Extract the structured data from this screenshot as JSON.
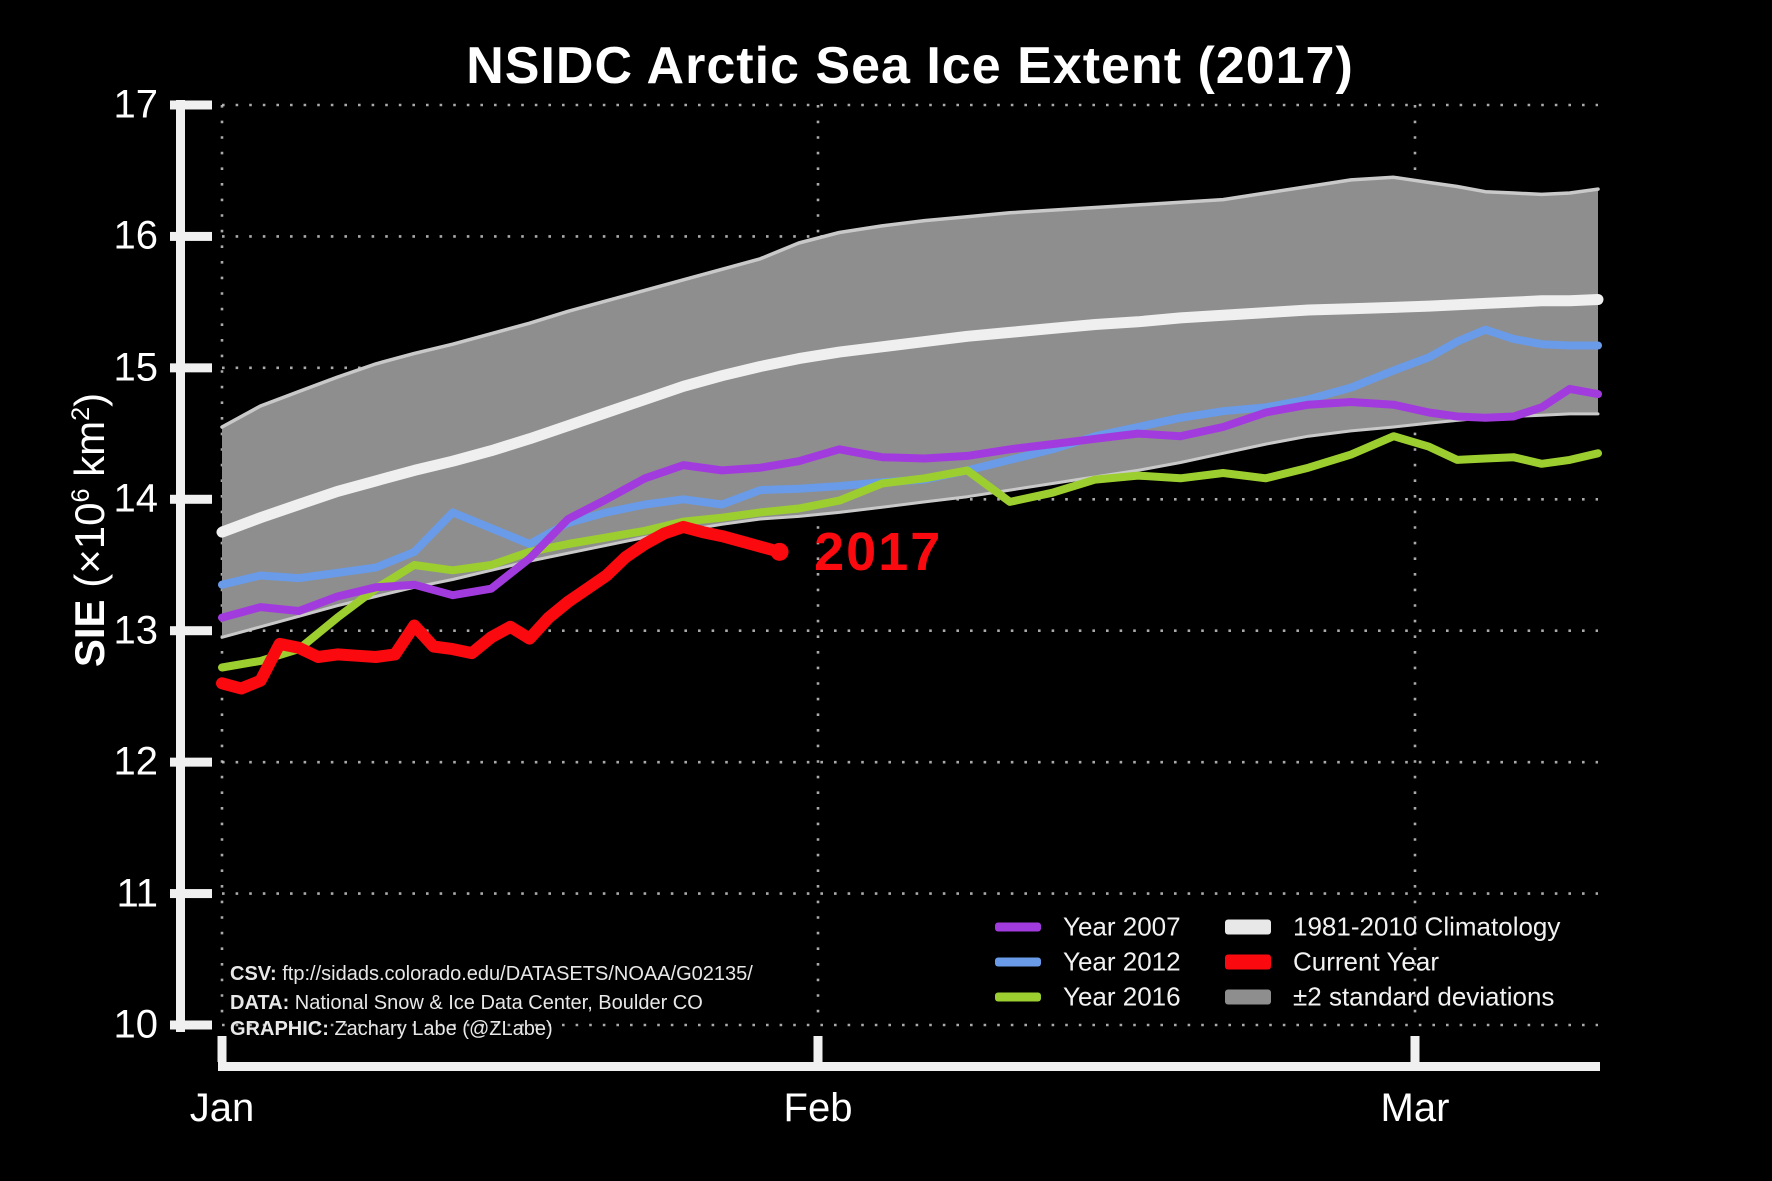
{
  "chart_data": {
    "type": "line",
    "title": "NSIDC Arctic Sea Ice Extent (2017)",
    "ylabel_parts": {
      "bold": "SIE",
      "pre": " (×10",
      "exp1": "6",
      "mid": " km",
      "exp2": "2",
      "close": ")"
    },
    "xlabel": "",
    "ylim": [
      10,
      17
    ],
    "yticks": [
      17,
      16,
      15,
      14,
      13,
      12,
      11,
      10
    ],
    "xticks": [
      "Jan",
      "Feb",
      "Mar"
    ],
    "grid": "dotted, at every y tick and every month tick",
    "legend_position": "lower right, two columns",
    "x_unit": "day of year (Jan 1 = 1)",
    "days": [
      1,
      3,
      5,
      7,
      9,
      11,
      13,
      15,
      17,
      19,
      21,
      23,
      25,
      27,
      29,
      31,
      33,
      35,
      37,
      39,
      41,
      43,
      45,
      47,
      49,
      51,
      53,
      55,
      57,
      59,
      61,
      63,
      65,
      67,
      69,
      71,
      73
    ],
    "band": {
      "name": "±2 standard deviations",
      "upper": [
        14.55,
        14.71,
        14.82,
        14.93,
        15.03,
        15.11,
        15.18,
        15.26,
        15.34,
        15.43,
        15.51,
        15.59,
        15.67,
        15.75,
        15.83,
        15.95,
        16.03,
        16.08,
        16.12,
        16.15,
        16.18,
        16.2,
        16.22,
        16.24,
        16.26,
        16.28,
        16.33,
        16.38,
        16.43,
        16.45,
        16.41,
        16.38,
        16.34,
        16.33,
        16.32,
        16.33,
        16.36
      ],
      "lower": [
        12.95,
        13.03,
        13.11,
        13.19,
        13.26,
        13.33,
        13.39,
        13.46,
        13.53,
        13.59,
        13.65,
        13.71,
        13.76,
        13.81,
        13.85,
        13.87,
        13.9,
        13.94,
        13.98,
        14.02,
        14.07,
        14.12,
        14.17,
        14.22,
        14.28,
        14.35,
        14.42,
        14.48,
        14.52,
        14.55,
        14.58,
        14.6,
        14.62,
        14.63,
        14.64,
        14.65,
        14.65
      ]
    },
    "series": [
      {
        "name": "1981-2010 Climatology",
        "color": "#efefef",
        "values": [
          13.75,
          13.86,
          13.96,
          14.06,
          14.14,
          14.22,
          14.29,
          14.37,
          14.46,
          14.56,
          14.66,
          14.76,
          14.86,
          14.94,
          15.01,
          15.07,
          15.12,
          15.16,
          15.2,
          15.24,
          15.27,
          15.3,
          15.33,
          15.35,
          15.38,
          15.4,
          15.42,
          15.44,
          15.45,
          15.46,
          15.47,
          15.48,
          15.49,
          15.5,
          15.51,
          15.51,
          15.52
        ]
      },
      {
        "name": "Year 2012",
        "color": "#699be8",
        "values": [
          13.35,
          13.42,
          13.4,
          13.44,
          13.48,
          13.6,
          13.9,
          13.78,
          13.66,
          13.82,
          13.9,
          13.96,
          14.0,
          13.96,
          14.07,
          14.08,
          14.1,
          14.13,
          14.15,
          14.22,
          14.3,
          14.38,
          14.48,
          14.55,
          14.62,
          14.67,
          14.7,
          14.76,
          14.85,
          14.98,
          15.08,
          15.2,
          15.29,
          15.22,
          15.18,
          15.17,
          15.17
        ]
      },
      {
        "name": "Year 2016",
        "color": "#9cce30",
        "values": [
          12.72,
          12.77,
          12.86,
          13.1,
          13.32,
          13.5,
          13.46,
          13.5,
          13.6,
          13.66,
          13.71,
          13.76,
          13.83,
          13.86,
          13.9,
          13.93,
          13.99,
          14.12,
          14.16,
          14.22,
          13.98,
          14.05,
          14.15,
          14.18,
          14.16,
          14.2,
          14.16,
          14.24,
          14.34,
          14.48,
          14.4,
          14.3,
          14.31,
          14.32,
          14.27,
          14.3,
          14.35
        ]
      },
      {
        "name": "Year 2007",
        "color": "#a23bde",
        "values": [
          13.1,
          13.18,
          13.15,
          13.26,
          13.33,
          13.35,
          13.27,
          13.32,
          13.55,
          13.85,
          14.0,
          14.16,
          14.26,
          14.22,
          14.24,
          14.29,
          14.38,
          14.32,
          14.31,
          14.33,
          14.38,
          14.42,
          14.46,
          14.5,
          14.48,
          14.55,
          14.66,
          14.72,
          14.74,
          14.72,
          14.66,
          14.63,
          14.62,
          14.63,
          14.7,
          14.84,
          14.8
        ]
      }
    ],
    "current_year": {
      "name": "Current Year",
      "color": "#fa0a0f",
      "days": [
        1,
        2,
        3,
        4,
        5,
        6,
        7,
        8,
        9,
        10,
        11,
        12,
        13,
        14,
        15,
        16,
        17,
        18,
        19,
        20,
        21,
        22,
        23,
        24,
        25,
        26,
        27,
        28,
        29,
        30
      ],
      "values": [
        12.6,
        12.56,
        12.62,
        12.9,
        12.87,
        12.8,
        12.82,
        12.81,
        12.8,
        12.82,
        13.04,
        12.88,
        12.86,
        12.83,
        12.95,
        13.03,
        12.94,
        13.1,
        13.22,
        13.32,
        13.42,
        13.56,
        13.66,
        13.74,
        13.79,
        13.75,
        13.72,
        13.68,
        13.64,
        13.6
      ],
      "endpoint_dot": {
        "day": 30,
        "value": 13.6
      }
    },
    "annotation": {
      "text": "2017",
      "day": 31.8,
      "value": 13.6
    }
  },
  "legend": [
    {
      "label": "Year 2007",
      "color": "#a23bde",
      "thick": false,
      "col": 0,
      "row": 0
    },
    {
      "label": "Year 2012",
      "color": "#699be8",
      "thick": false,
      "col": 0,
      "row": 1
    },
    {
      "label": "Year 2016",
      "color": "#9cce30",
      "thick": false,
      "col": 0,
      "row": 2
    },
    {
      "label": "1981-2010 Climatology",
      "color": "#e8e8e8",
      "thick": true,
      "col": 1,
      "row": 0
    },
    {
      "label": "Current Year",
      "color": "#fa0a0f",
      "thick": true,
      "col": 1,
      "row": 1
    },
    {
      "label": "±2 standard deviations",
      "color": "#8e8e8e",
      "thick": true,
      "col": 1,
      "row": 2
    }
  ],
  "credits": [
    {
      "prefix": "CSV:",
      "text": " ftp://sidads.colorado.edu/DATASETS/NOAA/G02135/"
    },
    {
      "prefix": "DATA:",
      "text": " National Snow & Ice Data Center, Boulder CO"
    },
    {
      "prefix": "GRAPHIC:",
      "text": " Zachary Labe (@ZLabe)"
    }
  ],
  "colors": {
    "background": "#000000",
    "axis": "#f0f0f0",
    "gridline": "#c8c8c8",
    "band_fill": "#8e8e8e",
    "band_edge": "#c9c9c9",
    "climatology": "#efefef",
    "year2007": "#a23bde",
    "year2012": "#699be8",
    "year2016": "#9cce30",
    "current_year": "#fa0a0f"
  }
}
